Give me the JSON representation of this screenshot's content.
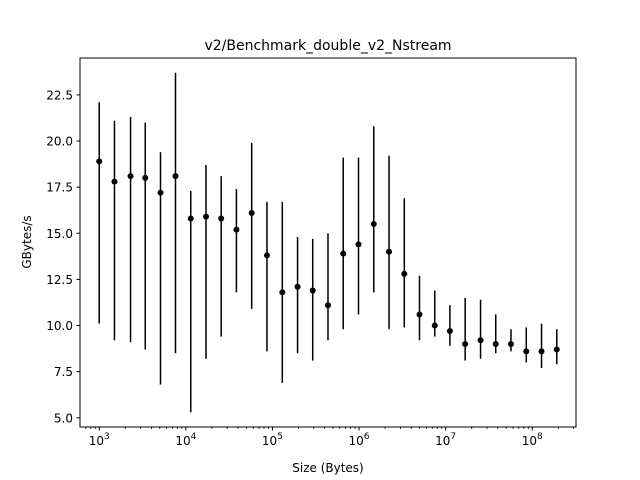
{
  "chart_data": {
    "type": "scatter",
    "title": "v2/Benchmark_double_v2_Nstream",
    "xlabel": "Size (Bytes)",
    "ylabel": "GBytes/s",
    "xscale": "log",
    "xlim": [
      600,
      320000000
    ],
    "ylim": [
      4.5,
      24.5
    ],
    "grid": false,
    "legend": "none",
    "marker_color": "#000000",
    "x_ticks": [
      {
        "base": "10",
        "exp": "3",
        "value": 1000
      },
      {
        "base": "10",
        "exp": "4",
        "value": 10000
      },
      {
        "base": "10",
        "exp": "5",
        "value": 100000
      },
      {
        "base": "10",
        "exp": "6",
        "value": 1000000
      },
      {
        "base": "10",
        "exp": "7",
        "value": 10000000
      },
      {
        "base": "10",
        "exp": "8",
        "value": 100000000
      }
    ],
    "y_ticks": [
      {
        "label": "5.0",
        "value": 5.0
      },
      {
        "label": "7.5",
        "value": 7.5
      },
      {
        "label": "10.0",
        "value": 10.0
      },
      {
        "label": "12.5",
        "value": 12.5
      },
      {
        "label": "15.0",
        "value": 15.0
      },
      {
        "label": "17.5",
        "value": 17.5
      },
      {
        "label": "20.0",
        "value": 20.0
      },
      {
        "label": "22.5",
        "value": 22.5
      }
    ],
    "points": [
      {
        "x": 1000,
        "y": 18.9,
        "ylow": 10.1,
        "yhigh": 22.1
      },
      {
        "x": 1500,
        "y": 17.8,
        "ylow": 9.2,
        "yhigh": 21.1
      },
      {
        "x": 2300,
        "y": 18.1,
        "ylow": 9.1,
        "yhigh": 21.3
      },
      {
        "x": 3400,
        "y": 18.0,
        "ylow": 8.7,
        "yhigh": 21.0
      },
      {
        "x": 5100,
        "y": 17.2,
        "ylow": 6.8,
        "yhigh": 19.4
      },
      {
        "x": 7600,
        "y": 18.1,
        "ylow": 8.5,
        "yhigh": 23.7
      },
      {
        "x": 11400,
        "y": 15.8,
        "ylow": 5.3,
        "yhigh": 17.3
      },
      {
        "x": 17100,
        "y": 15.9,
        "ylow": 8.2,
        "yhigh": 18.7
      },
      {
        "x": 25600,
        "y": 15.8,
        "ylow": 9.4,
        "yhigh": 18.1
      },
      {
        "x": 38400,
        "y": 15.2,
        "ylow": 11.8,
        "yhigh": 17.4
      },
      {
        "x": 57600,
        "y": 16.1,
        "ylow": 10.9,
        "yhigh": 19.9
      },
      {
        "x": 86500,
        "y": 13.8,
        "ylow": 8.6,
        "yhigh": 16.7
      },
      {
        "x": 130000,
        "y": 11.8,
        "ylow": 6.9,
        "yhigh": 16.7
      },
      {
        "x": 195000,
        "y": 12.1,
        "ylow": 8.5,
        "yhigh": 14.8
      },
      {
        "x": 292000,
        "y": 11.9,
        "ylow": 8.1,
        "yhigh": 14.7
      },
      {
        "x": 438000,
        "y": 11.1,
        "ylow": 9.2,
        "yhigh": 15.0
      },
      {
        "x": 657000,
        "y": 13.9,
        "ylow": 9.8,
        "yhigh": 19.1
      },
      {
        "x": 986000,
        "y": 14.4,
        "ylow": 10.6,
        "yhigh": 19.1
      },
      {
        "x": 1480000,
        "y": 15.5,
        "ylow": 11.8,
        "yhigh": 20.8
      },
      {
        "x": 2220000,
        "y": 14.0,
        "ylow": 9.8,
        "yhigh": 19.2
      },
      {
        "x": 3330000,
        "y": 12.8,
        "ylow": 9.9,
        "yhigh": 16.9
      },
      {
        "x": 4990000,
        "y": 10.6,
        "ylow": 9.2,
        "yhigh": 12.7
      },
      {
        "x": 7490000,
        "y": 10.0,
        "ylow": 9.4,
        "yhigh": 11.9
      },
      {
        "x": 11200000,
        "y": 9.7,
        "ylow": 8.9,
        "yhigh": 11.1
      },
      {
        "x": 16800000,
        "y": 9.0,
        "ylow": 8.1,
        "yhigh": 11.5
      },
      {
        "x": 25300000,
        "y": 9.2,
        "ylow": 8.2,
        "yhigh": 11.4
      },
      {
        "x": 37900000,
        "y": 9.0,
        "ylow": 8.5,
        "yhigh": 10.6
      },
      {
        "x": 56800000,
        "y": 9.0,
        "ylow": 8.6,
        "yhigh": 9.8
      },
      {
        "x": 85300000,
        "y": 8.6,
        "ylow": 8.0,
        "yhigh": 9.9
      },
      {
        "x": 128000000,
        "y": 8.6,
        "ylow": 7.7,
        "yhigh": 10.1
      },
      {
        "x": 192000000,
        "y": 8.7,
        "ylow": 7.9,
        "yhigh": 9.8
      }
    ]
  }
}
